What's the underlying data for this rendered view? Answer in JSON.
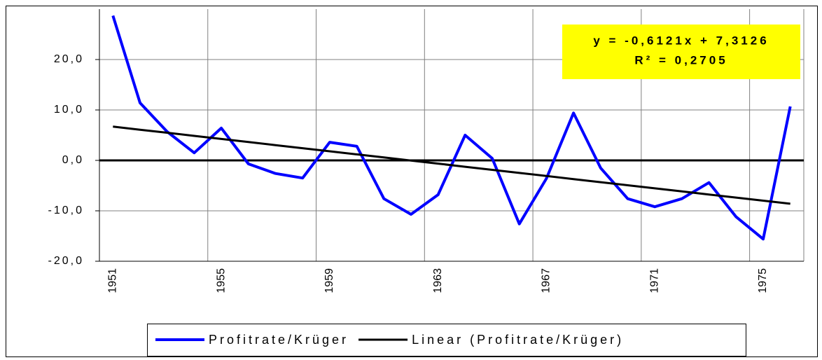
{
  "chart_data": {
    "type": "line",
    "categories": [
      "1951",
      null,
      null,
      null,
      "1955",
      null,
      null,
      null,
      "1959",
      null,
      null,
      null,
      "1963",
      null,
      null,
      null,
      "1967",
      null,
      null,
      null,
      "1971",
      null,
      null,
      null,
      "1975",
      null
    ],
    "series": [
      {
        "name": "Profitrate/Krüger",
        "color": "#0000ff",
        "values": [
          28.7,
          11.4,
          5.7,
          1.5,
          6.4,
          -0.7,
          -2.6,
          -3.5,
          3.6,
          2.8,
          -7.6,
          -10.7,
          -6.8,
          5.0,
          0.4,
          -12.6,
          -3.6,
          9.4,
          -1.5,
          -7.6,
          -9.2,
          -7.6,
          -4.4,
          -11.2,
          -15.6,
          10.7
        ]
      },
      {
        "name": "Linear (Profitrate/Krüger)",
        "color": "#000000",
        "values": [
          6.7,
          6.09,
          5.48,
          4.86,
          4.25,
          3.64,
          3.03,
          2.42,
          1.8,
          1.19,
          0.58,
          -0.03,
          -0.64,
          -1.26,
          -1.87,
          -2.48,
          -3.09,
          -3.71,
          -4.32,
          -4.93,
          -5.54,
          -6.15,
          -6.77,
          -7.38,
          -7.99,
          -8.6
        ]
      }
    ],
    "annotations": [
      "y = -0,6121x + 7,3126",
      "R² = 0,2705"
    ],
    "ylim": [
      -20,
      30
    ],
    "yticks": [
      {
        "value": -20,
        "label": "-20,0"
      },
      {
        "value": -10,
        "label": "-10,0"
      },
      {
        "value": 0,
        "label": "0,0"
      },
      {
        "value": 10,
        "label": "10,0"
      },
      {
        "value": 20,
        "label": "20,0"
      }
    ],
    "grid": true
  }
}
